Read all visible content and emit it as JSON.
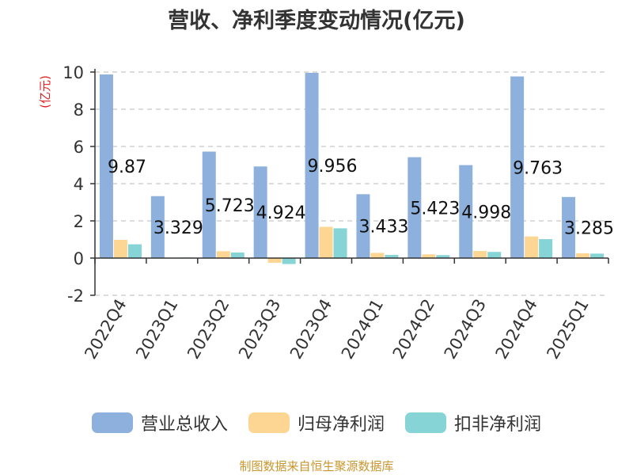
{
  "chart_data": {
    "type": "bar",
    "title": "营收、净利季度变动情况(亿元)",
    "ylabel": "(亿元)",
    "categories": [
      "2022Q4",
      "2023Q1",
      "2023Q2",
      "2023Q3",
      "2023Q4",
      "2024Q1",
      "2024Q2",
      "2024Q3",
      "2024Q4",
      "2025Q1"
    ],
    "series": [
      {
        "name": "营业总收入",
        "color": "#8eb0dc",
        "values": [
          9.87,
          3.329,
          5.723,
          4.924,
          9.956,
          3.433,
          5.423,
          4.998,
          9.763,
          3.285
        ]
      },
      {
        "name": "归母净利润",
        "color": "#fdd693",
        "values": [
          0.98,
          0.02,
          0.37,
          -0.25,
          1.68,
          0.28,
          0.2,
          0.38,
          1.16,
          0.26
        ]
      },
      {
        "name": "扣非净利润",
        "color": "#86d4d6",
        "values": [
          0.74,
          0.03,
          0.3,
          -0.32,
          1.6,
          0.17,
          0.16,
          0.33,
          1.02,
          0.24
        ]
      }
    ],
    "data_labels": [
      "9.87",
      "3.329",
      "5.723",
      "4.924",
      "9.956",
      "3.433",
      "5.423",
      "4.998",
      "9.763",
      "3.285"
    ],
    "yticks": [
      "-2",
      "0",
      "2",
      "4",
      "6",
      "8",
      "10"
    ],
    "ylim": [
      -2,
      10
    ],
    "grid": true,
    "legend_position": "bottom"
  },
  "source": "制图数据来自恒生聚源数据库"
}
